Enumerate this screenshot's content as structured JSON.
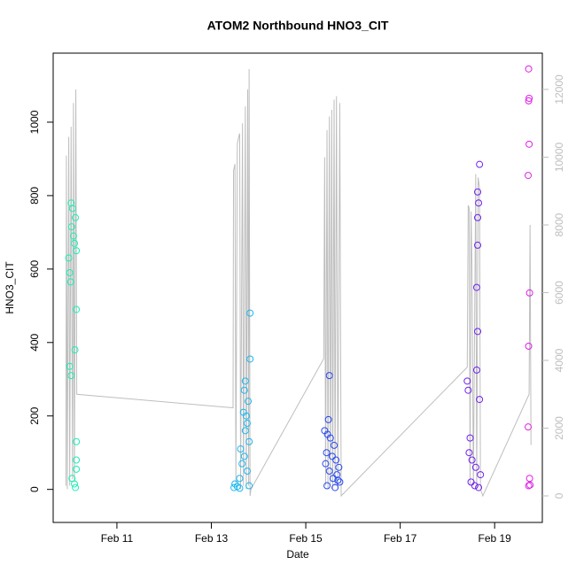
{
  "chart_data": {
    "type": "scatter",
    "title": "ATOM2 Northbound HNO3_CIT",
    "x_label": "Date",
    "y_label": "HNO3_CIT",
    "xlim": [
      9.65,
      20.01
    ],
    "ylim": [
      -90,
      1188
    ],
    "y2lim": [
      -784,
      13072
    ],
    "xticks": [
      {
        "value": 11,
        "label": "Feb 11"
      },
      {
        "value": 13,
        "label": "Feb 13"
      },
      {
        "value": 15,
        "label": "Feb 15"
      },
      {
        "value": 17,
        "label": "Feb 17"
      },
      {
        "value": 19,
        "label": "Feb 19"
      }
    ],
    "yticks": [
      0,
      200,
      400,
      600,
      800,
      1000
    ],
    "y2ticks": [
      0,
      2000,
      4000,
      6000,
      8000,
      10000,
      12000
    ],
    "series": [
      {
        "color": "#19f0b4",
        "x": [
          10.03,
          10.06,
          10.12,
          10.04,
          10.08,
          10.1,
          10.14,
          9.98,
          10.0,
          10.02,
          10.14,
          10.11,
          10.0,
          10.03,
          10.14,
          10.14,
          10.14,
          10.05,
          10.1,
          10.12
        ],
        "values": [
          780,
          765,
          740,
          715,
          690,
          670,
          650,
          630,
          590,
          565,
          490,
          380,
          335,
          310,
          130,
          80,
          55,
          30,
          15,
          5
        ]
      },
      {
        "color": "#1ab8f0",
        "x": [
          13.82,
          13.82,
          13.72,
          13.7,
          13.78,
          13.68,
          13.74,
          13.76,
          13.72,
          13.8,
          13.62,
          13.7,
          13.65,
          13.76,
          13.6,
          13.5,
          13.55,
          13.48,
          13.6,
          13.8
        ],
        "values": [
          480,
          355,
          295,
          270,
          240,
          210,
          200,
          180,
          160,
          130,
          110,
          90,
          70,
          50,
          30,
          15,
          8,
          5,
          3,
          10
        ]
      },
      {
        "color": "#2a4af0",
        "x": [
          15.5,
          15.48,
          15.4,
          15.46,
          15.52,
          15.6,
          15.44,
          15.56,
          15.64,
          15.42,
          15.7,
          15.5,
          15.66,
          15.58,
          15.72,
          15.45,
          15.62,
          15.68
        ],
        "values": [
          310,
          190,
          160,
          150,
          140,
          120,
          100,
          90,
          80,
          70,
          60,
          50,
          40,
          30,
          20,
          10,
          5,
          25
        ]
      },
      {
        "color": "#7020f0",
        "x": [
          18.68,
          18.64,
          18.66,
          18.64,
          18.64,
          18.62,
          18.64,
          18.62,
          18.42,
          18.44,
          18.68,
          18.48,
          18.46,
          18.52,
          18.6,
          18.7,
          18.5,
          18.58,
          18.66
        ],
        "values": [
          885,
          810,
          780,
          740,
          665,
          550,
          430,
          325,
          295,
          270,
          245,
          140,
          100,
          80,
          60,
          40,
          20,
          10,
          5
        ]
      },
      {
        "color": "#e020e8",
        "x": [
          19.72,
          19.73,
          19.72,
          19.73,
          19.71,
          19.74,
          19.72,
          19.71,
          19.74,
          19.72,
          19.75
        ],
        "values": [
          1145,
          1065,
          1058,
          940,
          855,
          535,
          390,
          170,
          30,
          10,
          12
        ]
      },
      {
        "color": "#bebebe",
        "axis": "y2",
        "type": "line",
        "x": [
          9.92,
          9.93,
          9.95,
          9.98,
          10.0,
          10.03,
          10.06,
          10.08,
          10.1,
          10.13,
          10.15,
          13.46,
          13.47,
          13.5,
          13.52,
          13.55,
          13.58,
          13.6,
          13.62,
          13.66,
          13.68,
          13.72,
          13.74,
          13.77,
          13.79,
          13.8,
          13.82,
          13.84,
          15.38,
          15.4,
          15.42,
          15.45,
          15.47,
          15.5,
          15.52,
          15.55,
          15.57,
          15.6,
          15.62,
          15.65,
          15.68,
          15.72,
          15.75,
          18.42,
          18.44,
          18.46,
          18.48,
          18.5,
          18.52,
          18.55,
          18.6,
          18.62,
          18.65,
          18.68,
          18.7,
          18.75,
          19.73,
          19.75,
          19.77
        ],
        "values": [
          300,
          10050,
          200,
          10600,
          300,
          10900,
          500,
          11600,
          400,
          12000,
          3000,
          2600,
          9600,
          9800,
          300,
          10400,
          10600,
          10700,
          200,
          11000,
          300,
          11500,
          200,
          12000,
          300,
          12600,
          0,
          200,
          4050,
          10000,
          300,
          10800,
          200,
          11200,
          300,
          11400,
          200,
          11700,
          300,
          11800,
          200,
          11600,
          0,
          3800,
          8580,
          8500,
          300,
          8400,
          6800,
          300,
          9500,
          200,
          9400,
          9100,
          200,
          0,
          3000,
          8000,
          1500
        ]
      }
    ]
  }
}
